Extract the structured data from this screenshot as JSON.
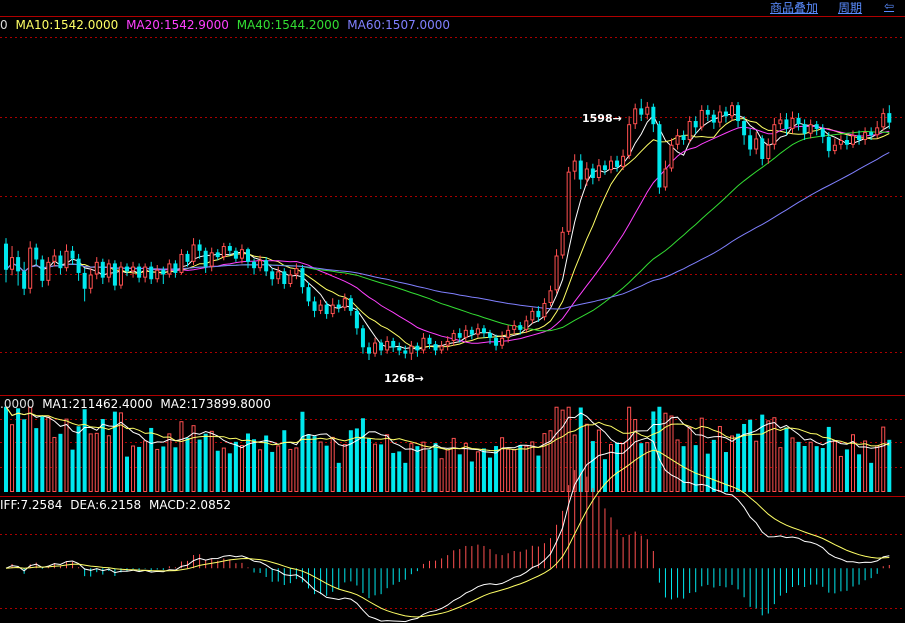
{
  "header": {
    "links": [
      {
        "label": "商品叠加",
        "name": "overlay-link"
      },
      {
        "label": "周期",
        "name": "period-link"
      },
      {
        "label": "⇦",
        "name": "back-link"
      }
    ]
  },
  "colors": {
    "up": "#ff5050",
    "down": "#00e8ee",
    "ma5": "#ffffff",
    "ma10": "#ffff66",
    "ma20": "#ff40ff",
    "ma40": "#33dd33",
    "ma60": "#8080ff",
    "grid": "#aa0000",
    "volma1": "#ffffff",
    "volma2": "#ffff66",
    "dif": "#ffffff",
    "dea": "#ffff66"
  },
  "price_legend": {
    "partial": "0",
    "ma10": "MA10:1542.0000",
    "ma20": "MA20:1542.9000",
    "ma40": "MA40:1544.2000",
    "ma60": "MA60:1507.0000"
  },
  "volume_legend": {
    "partial": ".0000",
    "ma1": "MA1:211462.4000",
    "ma2": "MA2:173899.8000"
  },
  "macd_legend": {
    "partial": "IFF:7.2584",
    "dea": "DEA:6.2158",
    "macd": "MACD:2.0852"
  },
  "annotations": {
    "high": "1598→",
    "low": "1268→"
  },
  "chart_data": {
    "type": "candlestick",
    "price_range": [
      1230,
      1680
    ],
    "high_mark": 1598,
    "low_mark": 1268,
    "ma_values": {
      "MA10": 1542.0,
      "MA20": 1542.9,
      "MA40": 1544.2,
      "MA60": 1507.0
    },
    "candles": [
      [
        1415,
        1382,
        1422,
        1366
      ],
      [
        1382,
        1398,
        1412,
        1375
      ],
      [
        1398,
        1380,
        1406,
        1362
      ],
      [
        1380,
        1358,
        1392,
        1350
      ],
      [
        1358,
        1410,
        1418,
        1352
      ],
      [
        1410,
        1395,
        1415,
        1388
      ],
      [
        1395,
        1368,
        1400,
        1360
      ],
      [
        1368,
        1392,
        1398,
        1362
      ],
      [
        1392,
        1400,
        1408,
        1386
      ],
      [
        1400,
        1384,
        1406,
        1376
      ],
      [
        1384,
        1406,
        1414,
        1380
      ],
      [
        1406,
        1396,
        1412,
        1388
      ],
      [
        1396,
        1378,
        1402,
        1368
      ],
      [
        1378,
        1358,
        1384,
        1342
      ],
      [
        1358,
        1376,
        1384,
        1352
      ],
      [
        1376,
        1392,
        1398,
        1370
      ],
      [
        1392,
        1372,
        1396,
        1364
      ],
      [
        1372,
        1390,
        1395,
        1366
      ],
      [
        1390,
        1362,
        1394,
        1356
      ],
      [
        1362,
        1386,
        1392,
        1358
      ],
      [
        1386,
        1380,
        1390,
        1374
      ],
      [
        1380,
        1386,
        1392,
        1372
      ],
      [
        1386,
        1372,
        1390,
        1366
      ],
      [
        1372,
        1386,
        1390,
        1366
      ],
      [
        1386,
        1370,
        1392,
        1364
      ],
      [
        1370,
        1382,
        1388,
        1366
      ],
      [
        1382,
        1376,
        1386,
        1364
      ],
      [
        1376,
        1390,
        1395,
        1372
      ],
      [
        1390,
        1378,
        1394,
        1372
      ],
      [
        1378,
        1402,
        1408,
        1376
      ],
      [
        1402,
        1392,
        1406,
        1386
      ],
      [
        1392,
        1414,
        1422,
        1388
      ],
      [
        1414,
        1406,
        1420,
        1396
      ],
      [
        1406,
        1386,
        1410,
        1378
      ],
      [
        1386,
        1404,
        1410,
        1380
      ],
      [
        1404,
        1398,
        1408,
        1394
      ],
      [
        1398,
        1412,
        1416,
        1394
      ],
      [
        1412,
        1406,
        1416,
        1400
      ],
      [
        1406,
        1396,
        1410,
        1392
      ],
      [
        1396,
        1408,
        1414,
        1390
      ],
      [
        1408,
        1392,
        1410,
        1384
      ],
      [
        1392,
        1384,
        1396,
        1376
      ],
      [
        1384,
        1394,
        1400,
        1380
      ],
      [
        1394,
        1380,
        1398,
        1374
      ],
      [
        1380,
        1370,
        1384,
        1362
      ],
      [
        1370,
        1380,
        1386,
        1364
      ],
      [
        1380,
        1364,
        1384,
        1358
      ],
      [
        1364,
        1376,
        1382,
        1360
      ],
      [
        1376,
        1384,
        1390,
        1370
      ],
      [
        1384,
        1360,
        1388,
        1352
      ],
      [
        1360,
        1342,
        1366,
        1336
      ],
      [
        1342,
        1330,
        1348,
        1322
      ],
      [
        1330,
        1338,
        1344,
        1326
      ],
      [
        1338,
        1326,
        1342,
        1320
      ],
      [
        1326,
        1338,
        1346,
        1322
      ],
      [
        1338,
        1334,
        1344,
        1328
      ],
      [
        1334,
        1346,
        1352,
        1330
      ],
      [
        1346,
        1330,
        1350,
        1324
      ],
      [
        1330,
        1308,
        1334,
        1300
      ],
      [
        1308,
        1284,
        1312,
        1276
      ],
      [
        1284,
        1276,
        1290,
        1268
      ],
      [
        1276,
        1290,
        1296,
        1272
      ],
      [
        1290,
        1280,
        1294,
        1274
      ],
      [
        1280,
        1292,
        1298,
        1276
      ],
      [
        1292,
        1284,
        1296,
        1278
      ],
      [
        1284,
        1280,
        1290,
        1274
      ],
      [
        1280,
        1276,
        1286,
        1270
      ],
      [
        1276,
        1286,
        1292,
        1268
      ],
      [
        1286,
        1280,
        1290,
        1272
      ],
      [
        1280,
        1296,
        1302,
        1276
      ],
      [
        1296,
        1288,
        1300,
        1282
      ],
      [
        1288,
        1280,
        1292,
        1274
      ],
      [
        1280,
        1286,
        1292,
        1276
      ],
      [
        1286,
        1292,
        1298,
        1280
      ],
      [
        1292,
        1302,
        1306,
        1286
      ],
      [
        1302,
        1296,
        1308,
        1290
      ],
      [
        1296,
        1306,
        1312,
        1292
      ],
      [
        1306,
        1300,
        1310,
        1294
      ],
      [
        1300,
        1308,
        1314,
        1296
      ],
      [
        1308,
        1302,
        1312,
        1296
      ],
      [
        1302,
        1296,
        1306,
        1288
      ],
      [
        1296,
        1286,
        1300,
        1280
      ],
      [
        1286,
        1296,
        1304,
        1282
      ],
      [
        1296,
        1306,
        1312,
        1290
      ],
      [
        1306,
        1312,
        1318,
        1300
      ],
      [
        1312,
        1306,
        1316,
        1300
      ],
      [
        1306,
        1318,
        1324,
        1302
      ],
      [
        1318,
        1330,
        1334,
        1314
      ],
      [
        1330,
        1322,
        1336,
        1316
      ],
      [
        1322,
        1340,
        1346,
        1318
      ],
      [
        1340,
        1356,
        1362,
        1336
      ],
      [
        1356,
        1400,
        1408,
        1352
      ],
      [
        1400,
        1430,
        1436,
        1396
      ],
      [
        1430,
        1506,
        1512,
        1426
      ],
      [
        1506,
        1520,
        1528,
        1496
      ],
      [
        1520,
        1496,
        1528,
        1484
      ],
      [
        1496,
        1510,
        1518,
        1488
      ],
      [
        1510,
        1498,
        1516,
        1490
      ],
      [
        1498,
        1514,
        1522,
        1494
      ],
      [
        1514,
        1508,
        1520,
        1502
      ],
      [
        1508,
        1520,
        1526,
        1504
      ],
      [
        1520,
        1512,
        1526,
        1506
      ],
      [
        1512,
        1526,
        1534,
        1508
      ],
      [
        1526,
        1566,
        1576,
        1522
      ],
      [
        1566,
        1586,
        1592,
        1560
      ],
      [
        1586,
        1578,
        1598,
        1570
      ],
      [
        1578,
        1588,
        1594,
        1572
      ],
      [
        1588,
        1566,
        1592,
        1556
      ],
      [
        1566,
        1486,
        1570,
        1478
      ],
      [
        1486,
        1510,
        1520,
        1482
      ],
      [
        1510,
        1540,
        1548,
        1506
      ],
      [
        1540,
        1552,
        1560,
        1534
      ],
      [
        1552,
        1546,
        1558,
        1540
      ],
      [
        1546,
        1570,
        1576,
        1542
      ],
      [
        1570,
        1562,
        1576,
        1554
      ],
      [
        1562,
        1584,
        1590,
        1558
      ],
      [
        1584,
        1578,
        1590,
        1570
      ],
      [
        1578,
        1568,
        1584,
        1560
      ],
      [
        1568,
        1582,
        1590,
        1562
      ],
      [
        1582,
        1576,
        1588,
        1568
      ],
      [
        1576,
        1590,
        1594,
        1570
      ],
      [
        1590,
        1570,
        1594,
        1562
      ],
      [
        1570,
        1552,
        1576,
        1540
      ],
      [
        1552,
        1534,
        1560,
        1526
      ],
      [
        1534,
        1548,
        1556,
        1528
      ],
      [
        1548,
        1522,
        1552,
        1514
      ],
      [
        1522,
        1540,
        1548,
        1516
      ],
      [
        1540,
        1566,
        1574,
        1534
      ],
      [
        1566,
        1572,
        1580,
        1560
      ],
      [
        1572,
        1560,
        1580,
        1552
      ],
      [
        1560,
        1574,
        1582,
        1554
      ],
      [
        1574,
        1566,
        1580,
        1558
      ],
      [
        1566,
        1554,
        1572,
        1546
      ],
      [
        1554,
        1566,
        1572,
        1548
      ],
      [
        1566,
        1560,
        1570,
        1552
      ],
      [
        1560,
        1550,
        1566,
        1542
      ],
      [
        1550,
        1532,
        1556,
        1524
      ],
      [
        1532,
        1540,
        1548,
        1528
      ],
      [
        1540,
        1546,
        1552,
        1534
      ],
      [
        1546,
        1540,
        1552,
        1534
      ],
      [
        1540,
        1552,
        1558,
        1536
      ],
      [
        1552,
        1546,
        1558,
        1540
      ],
      [
        1546,
        1556,
        1562,
        1540
      ],
      [
        1556,
        1552,
        1562,
        1546
      ],
      [
        1552,
        1562,
        1570,
        1548
      ],
      [
        1562,
        1580,
        1586,
        1558
      ],
      [
        1580,
        1568,
        1590,
        1560
      ]
    ],
    "volume_range": [
      0,
      320000
    ],
    "macd_range": [
      -22,
      28
    ]
  }
}
